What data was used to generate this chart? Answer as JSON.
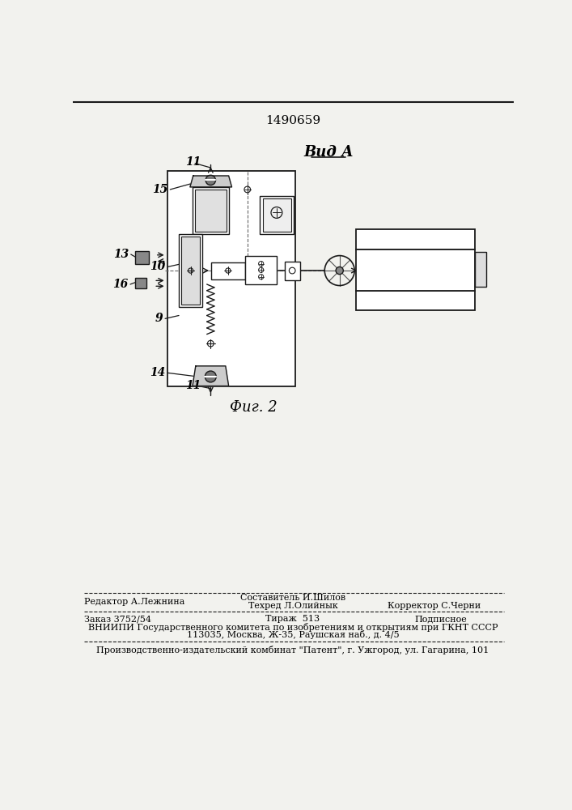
{
  "title_number": "1490659",
  "view_label": "Вид А",
  "fig_label": "Фиг. 2",
  "bg_color": "#f2f2ee",
  "line_color": "#1a1a1a",
  "footer_editor": "Редактор А.Лежнина",
  "footer_sostavitel": "Составитель И.Шилов",
  "footer_tekhred": "Техред Л.Олийнык",
  "footer_korrektor": "Корректор С.Черни",
  "footer_zakaz": "Заказ 3752/54",
  "footer_tirazh": "Тираж  513",
  "footer_podpisnoe": "Подписное",
  "footer_vniipи": "ВНИИПИ Государственного комитета по изобретениям и открытиям при ГКНТ СССР",
  "footer_addr": "113035, Москва, Ж-35, Раушская наб., д. 4/5",
  "footer_patent": "Производственно-издательский комбинат \"Патент\", г. Ужгород, ул. Гагарина, 101",
  "label_11_top": "11",
  "label_15": "15",
  "label_13": "13",
  "label_10": "10",
  "label_16": "16",
  "label_9": "9",
  "label_14": "14",
  "label_11_bot": "11"
}
